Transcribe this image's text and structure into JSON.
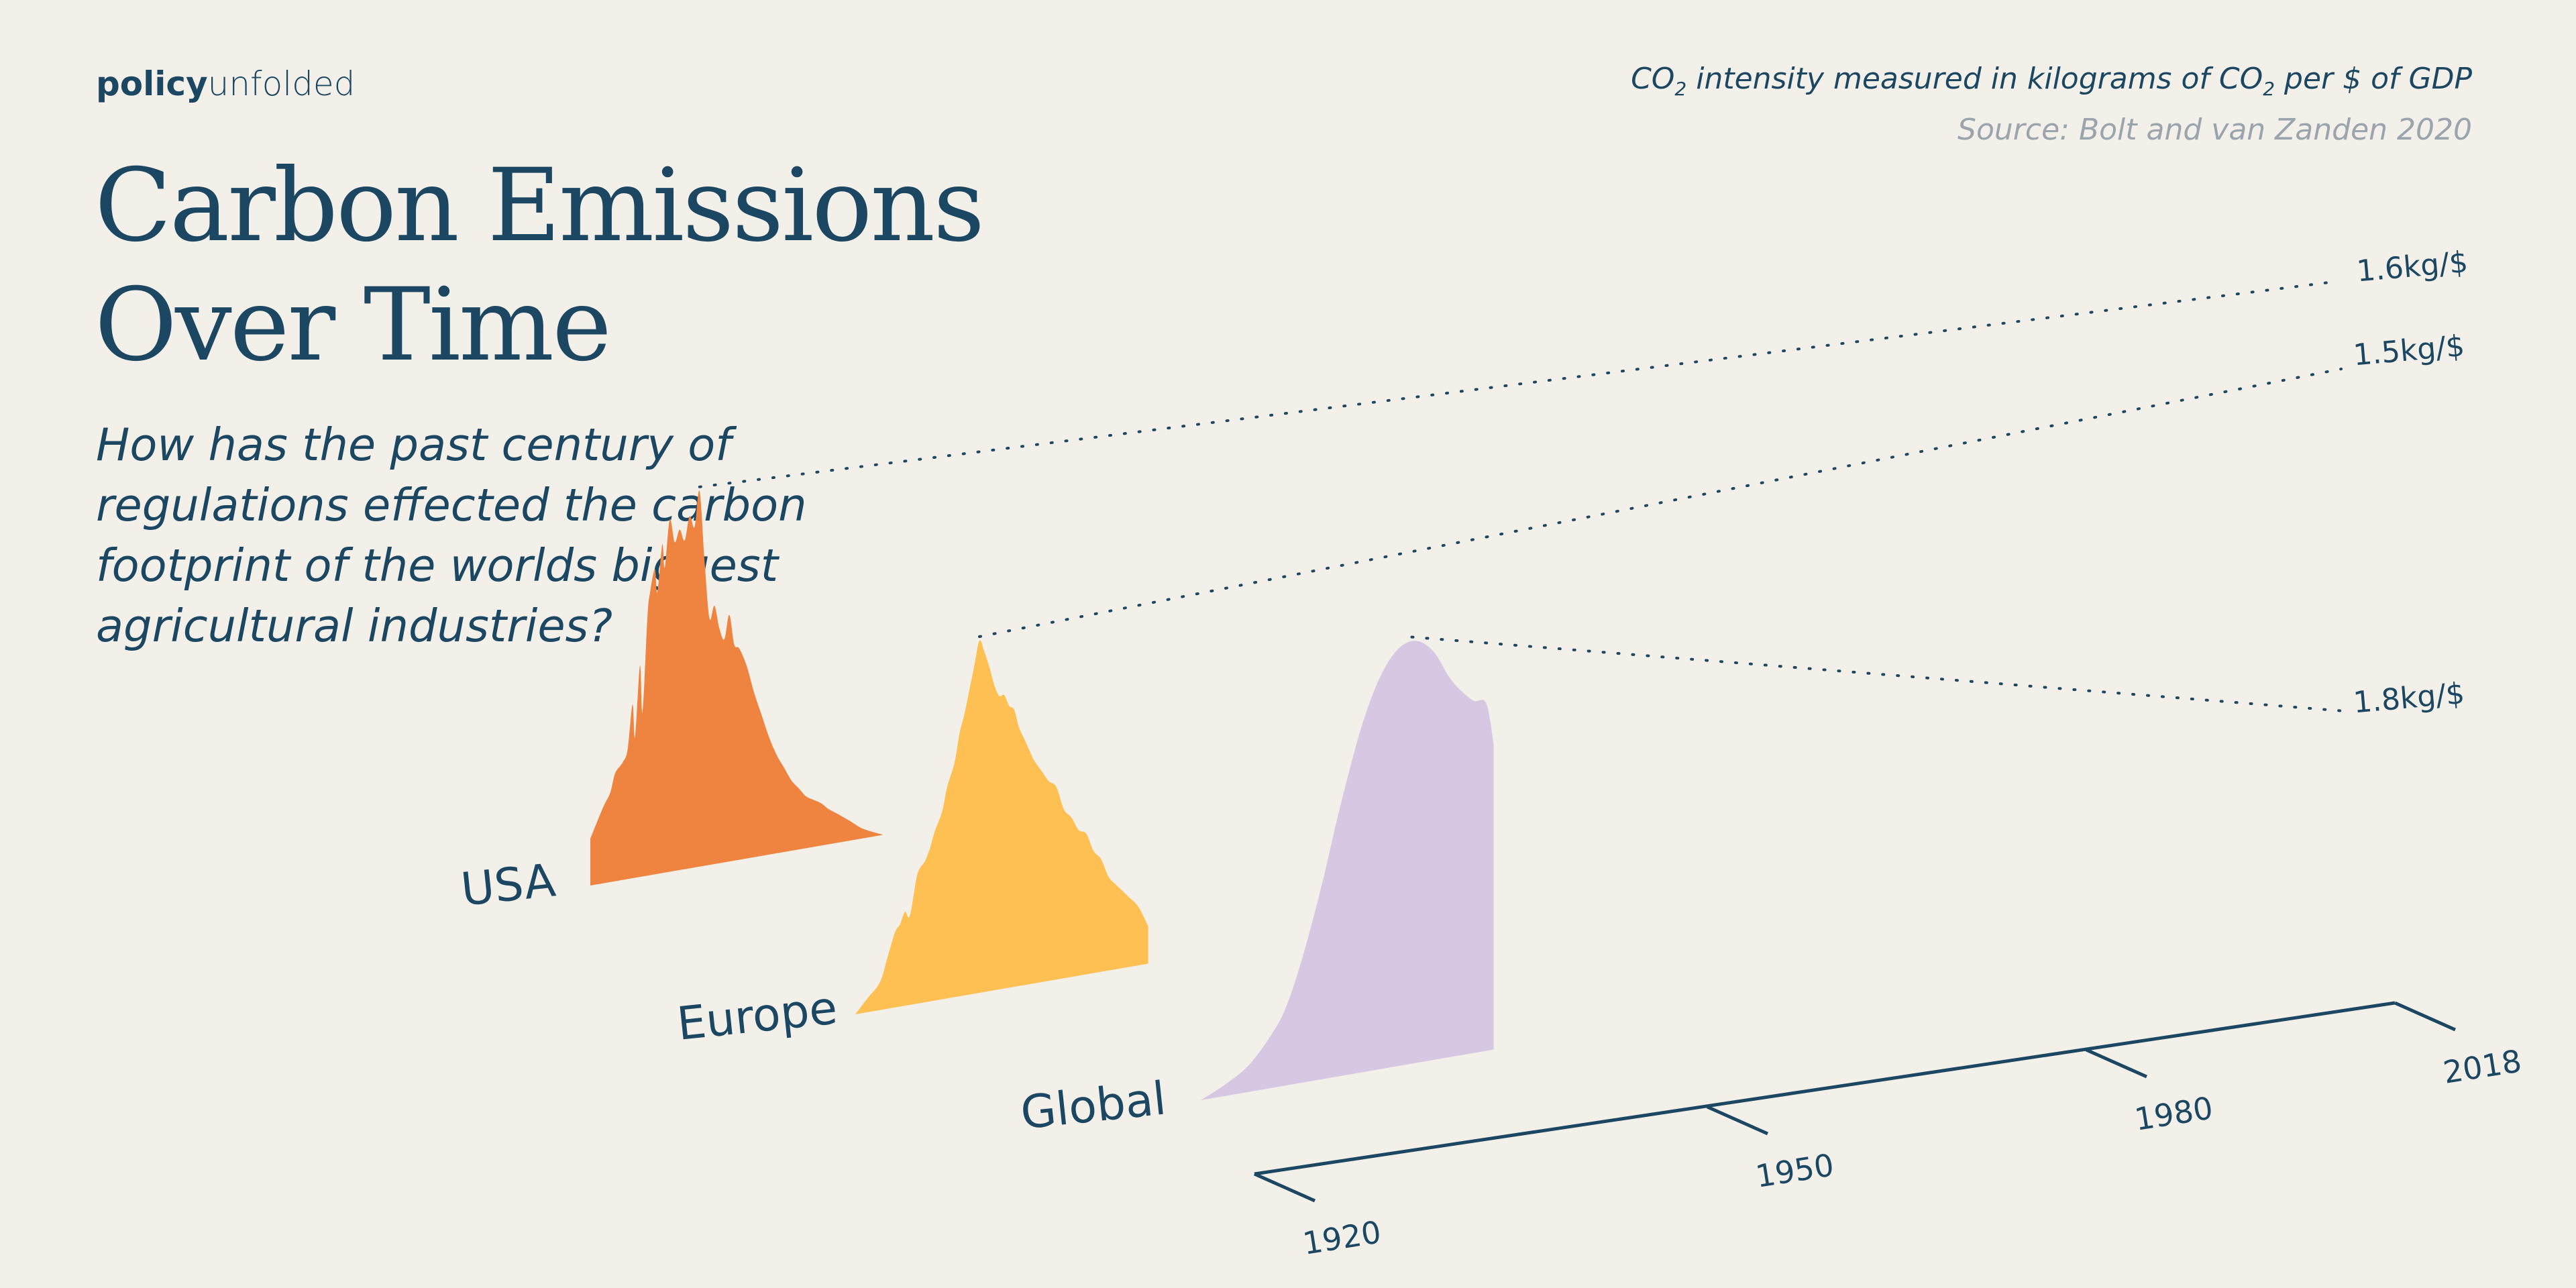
{
  "brand": {
    "bold": "policy",
    "light": "unfolded"
  },
  "header": {
    "title_line1": "Carbon Emissions",
    "title_line2": "Over Time",
    "subtitle": "How has the past century of regulations effected the carbon footprint of the worlds biggest agricultural industries?"
  },
  "note": {
    "part1": "CO",
    "sub1": "2",
    "part2": " intensity measured in kilograms of CO",
    "sub2": "2",
    "part3": " per $ of GDP"
  },
  "source": "Source: Bolt and  van Zanden 2020",
  "colors": {
    "text": "#1c4763",
    "usa": "#ef8340",
    "europe": "#ffbb47",
    "global": "#d4c4e1",
    "background": "#f2f0e9"
  },
  "chart_data": {
    "type": "area",
    "style": "3d-ridgeline",
    "x_label_ticks": [
      "1920",
      "1950",
      "1980",
      "2018"
    ],
    "x_range": [
      1900,
      2018
    ],
    "y_unit": "kg CO2 per $ of GDP",
    "series": [
      {
        "name": "USA",
        "color": "#ef8340",
        "x": [
          1900,
          1905,
          1908,
          1910,
          1913,
          1915,
          1917,
          1918,
          1920,
          1921,
          1923,
          1924,
          1926,
          1927,
          1929,
          1930,
          1932,
          1934,
          1936,
          1938,
          1940,
          1942,
          1944,
          1946,
          1948,
          1950,
          1952,
          1954,
          1956,
          1958,
          1960,
          1963,
          1966,
          1969,
          1972,
          1975,
          1978,
          1981,
          1984,
          1987,
          1990,
          1993,
          1996,
          2000,
          2005,
          2010,
          2018
        ],
        "values": [
          0.2,
          0.32,
          0.38,
          0.46,
          0.5,
          0.55,
          0.74,
          0.6,
          0.9,
          0.7,
          1.1,
          1.2,
          1.3,
          1.2,
          1.4,
          1.3,
          1.5,
          1.4,
          1.45,
          1.4,
          1.5,
          1.45,
          1.6,
          1.3,
          1.05,
          1.1,
          1.0,
          0.95,
          1.05,
          0.92,
          0.9,
          0.82,
          0.7,
          0.6,
          0.5,
          0.42,
          0.36,
          0.3,
          0.26,
          0.22,
          0.2,
          0.18,
          0.15,
          0.12,
          0.08,
          0.04,
          0.0
        ],
        "peak_label": "1.6kg/$",
        "peak_index": 22,
        "label_year": 1918
      },
      {
        "name": "Europe",
        "color": "#ffbb47",
        "x": [
          1900,
          1905,
          1910,
          1913,
          1916,
          1918,
          1920,
          1922,
          1925,
          1928,
          1930,
          1932,
          1935,
          1937,
          1940,
          1942,
          1944,
          1946,
          1948,
          1950,
          1952,
          1954,
          1956,
          1958,
          1960,
          1962,
          1964,
          1966,
          1968,
          1970,
          1972,
          1975,
          1978,
          1981,
          1984,
          1987,
          1990,
          1993,
          1996,
          1999,
          2002,
          2005,
          2010,
          2014,
          2018
        ],
        "values": [
          0.0,
          0.06,
          0.12,
          0.22,
          0.32,
          0.35,
          0.4,
          0.38,
          0.55,
          0.6,
          0.65,
          0.72,
          0.8,
          0.9,
          1.0,
          1.12,
          1.2,
          1.3,
          1.4,
          1.5,
          1.45,
          1.38,
          1.3,
          1.25,
          1.25,
          1.2,
          1.18,
          1.1,
          1.05,
          1.0,
          0.95,
          0.9,
          0.85,
          0.82,
          0.72,
          0.68,
          0.62,
          0.6,
          0.52,
          0.48,
          0.4,
          0.36,
          0.3,
          0.25,
          0.16
        ],
        "peak_label": "1.5kg/$",
        "peak_index": 19,
        "label_year": 1917
      },
      {
        "name": "Global",
        "color": "#d4c4e1",
        "x": [
          1900,
          1910,
          1920,
          1930,
          1935,
          1940,
          1945,
          1950,
          1955,
          1960,
          1965,
          1970,
          1975,
          1980,
          1985,
          1990,
          1995,
          2000,
          2005,
          2010,
          2015,
          2018
        ],
        "values": [
          0.0,
          0.05,
          0.12,
          0.25,
          0.35,
          0.5,
          0.68,
          0.88,
          1.1,
          1.3,
          1.48,
          1.62,
          1.72,
          1.78,
          1.8,
          1.78,
          1.72,
          1.62,
          1.55,
          1.5,
          1.48,
          1.3
        ],
        "peak_label": "1.8kg/$",
        "peak_index": 14,
        "label_year": 1922
      }
    ]
  }
}
